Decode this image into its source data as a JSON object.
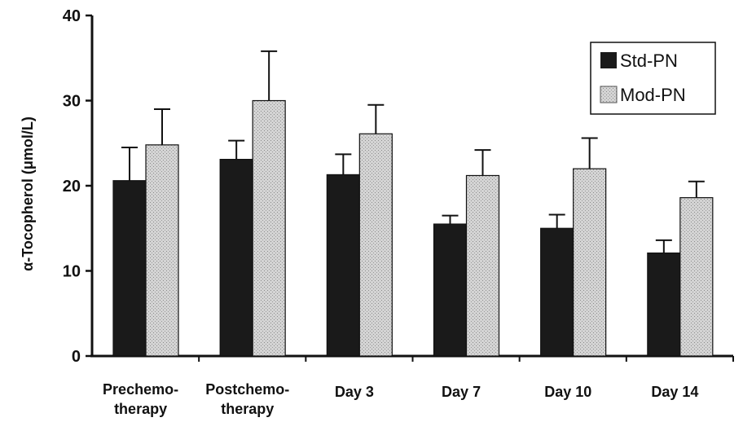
{
  "chart_data": {
    "type": "bar",
    "title": "",
    "xlabel": "",
    "ylabel": "α-Tocopherol (μmol/L)",
    "ylim": [
      0,
      40
    ],
    "yticks": [
      0,
      10,
      20,
      30,
      40
    ],
    "grid": false,
    "legend_position": "top-right",
    "categories": [
      [
        "Prechemo-",
        "therapy"
      ],
      [
        "Postchemo-",
        "therapy"
      ],
      [
        "Day 3"
      ],
      [
        "Day 7"
      ],
      [
        "Day 10"
      ],
      [
        "Day 14"
      ]
    ],
    "series": [
      {
        "name": "Std-PN",
        "color": "#1a1a1a",
        "values": [
          20.6,
          23.1,
          21.3,
          15.5,
          15.0,
          12.1
        ],
        "error": [
          3.9,
          2.2,
          2.4,
          1.0,
          1.6,
          1.5
        ]
      },
      {
        "name": "Mod-PN",
        "color": "#c8c8c8",
        "values": [
          24.8,
          30.0,
          26.1,
          21.2,
          22.0,
          18.6
        ],
        "error": [
          4.2,
          5.8,
          3.4,
          3.0,
          3.6,
          1.9
        ]
      }
    ]
  }
}
